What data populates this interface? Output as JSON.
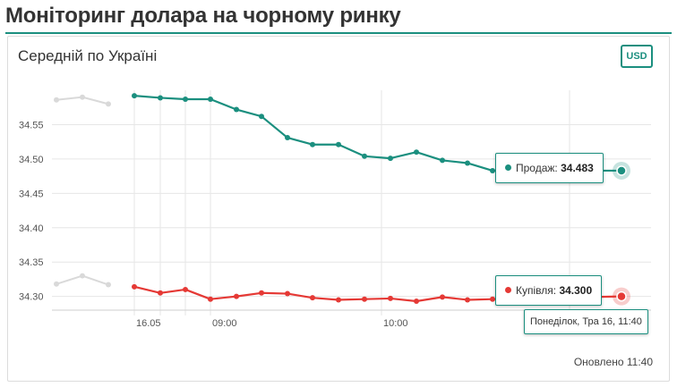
{
  "header": {
    "title": "Моніторинг долара на чорному ринку"
  },
  "card": {
    "title": "Середній по Україні",
    "currency_button": "USD",
    "updated": "Оновлено 11:40"
  },
  "colors": {
    "sell": "#1b8f7f",
    "buy": "#e53935",
    "ghost": "#d9d9d9",
    "grid": "#e6e6e6"
  },
  "tooltip": {
    "sell_label": "Продаж:",
    "sell_value": "34.483",
    "buy_label": "Купівля:",
    "buy_value": "34.300",
    "date": "Понеділок, Тра 16, 11:40"
  },
  "chart_data": {
    "type": "line",
    "title": "",
    "xlabel": "",
    "ylabel": "",
    "ylim": [
      34.28,
      34.6
    ],
    "yticks": [
      34.3,
      34.35,
      34.4,
      34.45,
      34.5,
      34.55
    ],
    "ytick_labels": [
      "34.30",
      "34.35",
      "34.40",
      "34.45",
      "34.50",
      "34.55"
    ],
    "xlim": [
      "15.05 21:00",
      "16.05 11:50"
    ],
    "xticks": [
      {
        "x": "16.05 00:00",
        "label": "16.05"
      },
      {
        "x": "16.05 03:00",
        "label": ""
      },
      {
        "x": "16.05 06:00",
        "label": ""
      },
      {
        "x": "16.05 09:00",
        "label": "09:00"
      },
      {
        "x": "16.05 10:00",
        "label": "10:00"
      },
      {
        "x": "16.05 11:00",
        "label": ""
      }
    ],
    "series": [
      {
        "name": "Продаж",
        "ghost": [
          [
            "15.05 21:00",
            34.586
          ],
          [
            "15.05 22:00",
            34.59
          ],
          [
            "15.05 23:00",
            34.58
          ]
        ],
        "points": [
          [
            "16.05 00:00",
            34.592
          ],
          [
            "16.05 03:00",
            34.589
          ],
          [
            "16.05 06:00",
            34.587
          ],
          [
            "16.05 09:00",
            34.587
          ],
          [
            "16.05 09:05",
            34.572
          ],
          [
            "16.05 09:10",
            34.562
          ],
          [
            "16.05 09:15",
            34.531
          ],
          [
            "16.05 09:20",
            34.521
          ],
          [
            "16.05 09:25",
            34.521
          ],
          [
            "16.05 09:30",
            34.504
          ],
          [
            "16.05 09:35",
            34.501
          ],
          [
            "16.05 09:40",
            34.51
          ],
          [
            "16.05 09:45",
            34.498
          ],
          [
            "16.05 09:50",
            34.494
          ],
          [
            "16.05 09:55",
            34.483
          ],
          [
            "16.05 11:40",
            34.483
          ]
        ]
      },
      {
        "name": "Купівля",
        "ghost": [
          [
            "15.05 21:00",
            34.318
          ],
          [
            "15.05 22:00",
            34.33
          ],
          [
            "15.05 23:00",
            34.317
          ]
        ],
        "points": [
          [
            "16.05 00:00",
            34.314
          ],
          [
            "16.05 03:00",
            34.305
          ],
          [
            "16.05 06:00",
            34.31
          ],
          [
            "16.05 09:00",
            34.296
          ],
          [
            "16.05 09:05",
            34.3
          ],
          [
            "16.05 09:10",
            34.305
          ],
          [
            "16.05 09:15",
            34.304
          ],
          [
            "16.05 09:20",
            34.298
          ],
          [
            "16.05 09:25",
            34.295
          ],
          [
            "16.05 09:30",
            34.296
          ],
          [
            "16.05 09:35",
            34.297
          ],
          [
            "16.05 09:40",
            34.293
          ],
          [
            "16.05 09:45",
            34.299
          ],
          [
            "16.05 09:50",
            34.295
          ],
          [
            "16.05 09:55",
            34.296
          ],
          [
            "16.05 11:40",
            34.3
          ]
        ]
      }
    ],
    "grid": true,
    "legend": "none"
  }
}
